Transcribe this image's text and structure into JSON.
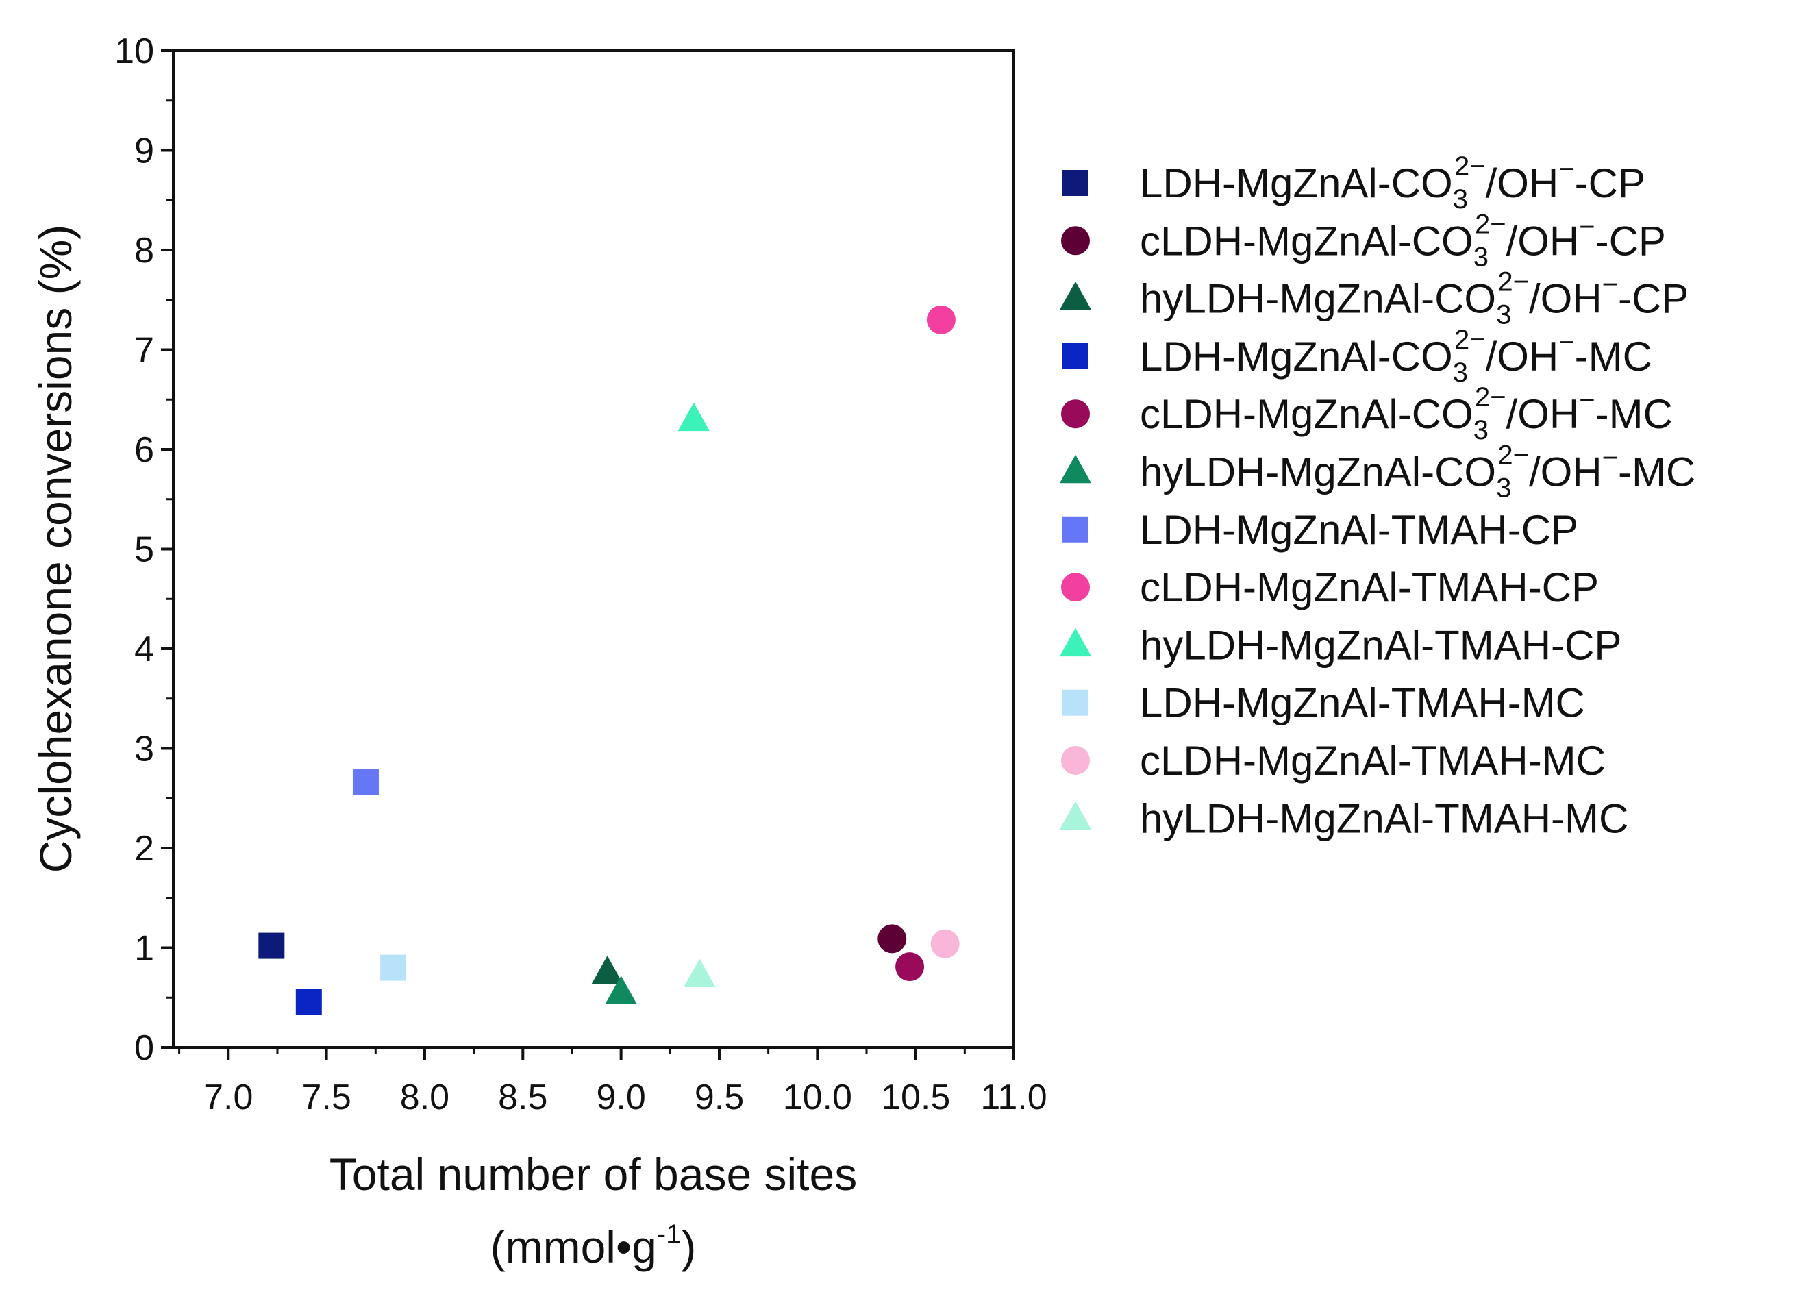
{
  "chart_data": {
    "type": "scatter",
    "title": "",
    "xlabel": "Total number of base sites",
    "xlabel_unit": "(mmol•g-1)",
    "xlabel_unit_parts": [
      "(mmol•g",
      "-1",
      ")"
    ],
    "ylabel": "Cyclohexanone conversions (%)",
    "xlim": [
      6.72,
      11.0
    ],
    "ylim": [
      0,
      10
    ],
    "x_ticks": [
      "7.0",
      "7.5",
      "8.0",
      "8.5",
      "9.0",
      "9.5",
      "10.0",
      "10.5",
      "11.0"
    ],
    "y_ticks": [
      "0",
      "1",
      "2",
      "3",
      "4",
      "5",
      "6",
      "7",
      "8",
      "9",
      "10"
    ],
    "grid": false,
    "legend_position": "right",
    "series": [
      {
        "name": "LDH-MgZnAl-CO32−/OH−-CP",
        "label_parts": [
          "LDH-MgZnAl-CO",
          "3",
          "2−",
          "/OH",
          "−",
          "-CP"
        ],
        "marker": "square",
        "color": "#0d1a7a",
        "points": [
          [
            7.22,
            1.02
          ]
        ]
      },
      {
        "name": "cLDH-MgZnAl-CO32−/OH−-CP",
        "label_parts": [
          "cLDH-MgZnAl-CO",
          "3",
          "2−",
          "/OH",
          "−",
          "-CP"
        ],
        "marker": "circle",
        "color": "#5c0035",
        "points": [
          [
            10.38,
            1.09
          ]
        ]
      },
      {
        "name": "hyLDH-MgZnAl-CO32−/OH−-CP",
        "label_parts": [
          "hyLDH-MgZnAl-CO",
          "3",
          "2−",
          "/OH",
          "−",
          "-CP"
        ],
        "marker": "triangle",
        "color": "#0b5e42",
        "points": [
          [
            8.93,
            0.75
          ]
        ]
      },
      {
        "name": "LDH-MgZnAl-CO32−/OH−-MC",
        "label_parts": [
          "LDH-MgZnAl-CO",
          "3",
          "2−",
          "/OH",
          "−",
          "-MC"
        ],
        "marker": "square",
        "color": "#0a25c4",
        "points": [
          [
            7.41,
            0.46
          ]
        ]
      },
      {
        "name": "cLDH-MgZnAl-CO32−/OH−-MC",
        "label_parts": [
          "cLDH-MgZnAl-CO",
          "3",
          "2−",
          "/OH",
          "−",
          "-MC"
        ],
        "marker": "circle",
        "color": "#9a0a5a",
        "points": [
          [
            10.47,
            0.81
          ]
        ]
      },
      {
        "name": "hyLDH-MgZnAl-CO32−/OH−-MC",
        "label_parts": [
          "hyLDH-MgZnAl-CO",
          "3",
          "2−",
          "/OH",
          "−",
          "-MC"
        ],
        "marker": "triangle",
        "color": "#0e8a5e",
        "points": [
          [
            9.0,
            0.55
          ]
        ]
      },
      {
        "name": "LDH-MgZnAl-TMAH-CP",
        "label_parts": [
          "LDH-MgZnAl-TMAH-CP"
        ],
        "marker": "square",
        "color": "#6677f5",
        "points": [
          [
            7.7,
            2.66
          ]
        ]
      },
      {
        "name": "cLDH-MgZnAl-TMAH-CP",
        "label_parts": [
          "cLDH-MgZnAl-TMAH-CP"
        ],
        "marker": "circle",
        "color": "#f23fa0",
        "points": [
          [
            10.63,
            7.3
          ]
        ]
      },
      {
        "name": "hyLDH-MgZnAl-TMAH-CP",
        "label_parts": [
          "hyLDH-MgZnAl-TMAH-CP"
        ],
        "marker": "triangle",
        "color": "#3cf2b8",
        "points": [
          [
            9.37,
            6.3
          ]
        ]
      },
      {
        "name": "LDH-MgZnAl-TMAH-MC",
        "label_parts": [
          "LDH-MgZnAl-TMAH-MC"
        ],
        "marker": "square",
        "color": "#b8e2fa",
        "points": [
          [
            7.84,
            0.8
          ]
        ]
      },
      {
        "name": "cLDH-MgZnAl-TMAH-MC",
        "label_parts": [
          "cLDH-MgZnAl-TMAH-MC"
        ],
        "marker": "circle",
        "color": "#f9b6d8",
        "points": [
          [
            10.65,
            1.04
          ]
        ]
      },
      {
        "name": "hyLDH-MgZnAl-TMAH-MC",
        "label_parts": [
          "hyLDH-MgZnAl-TMAH-MC"
        ],
        "marker": "triangle",
        "color": "#a8f5db",
        "points": [
          [
            9.4,
            0.72
          ]
        ]
      }
    ]
  }
}
